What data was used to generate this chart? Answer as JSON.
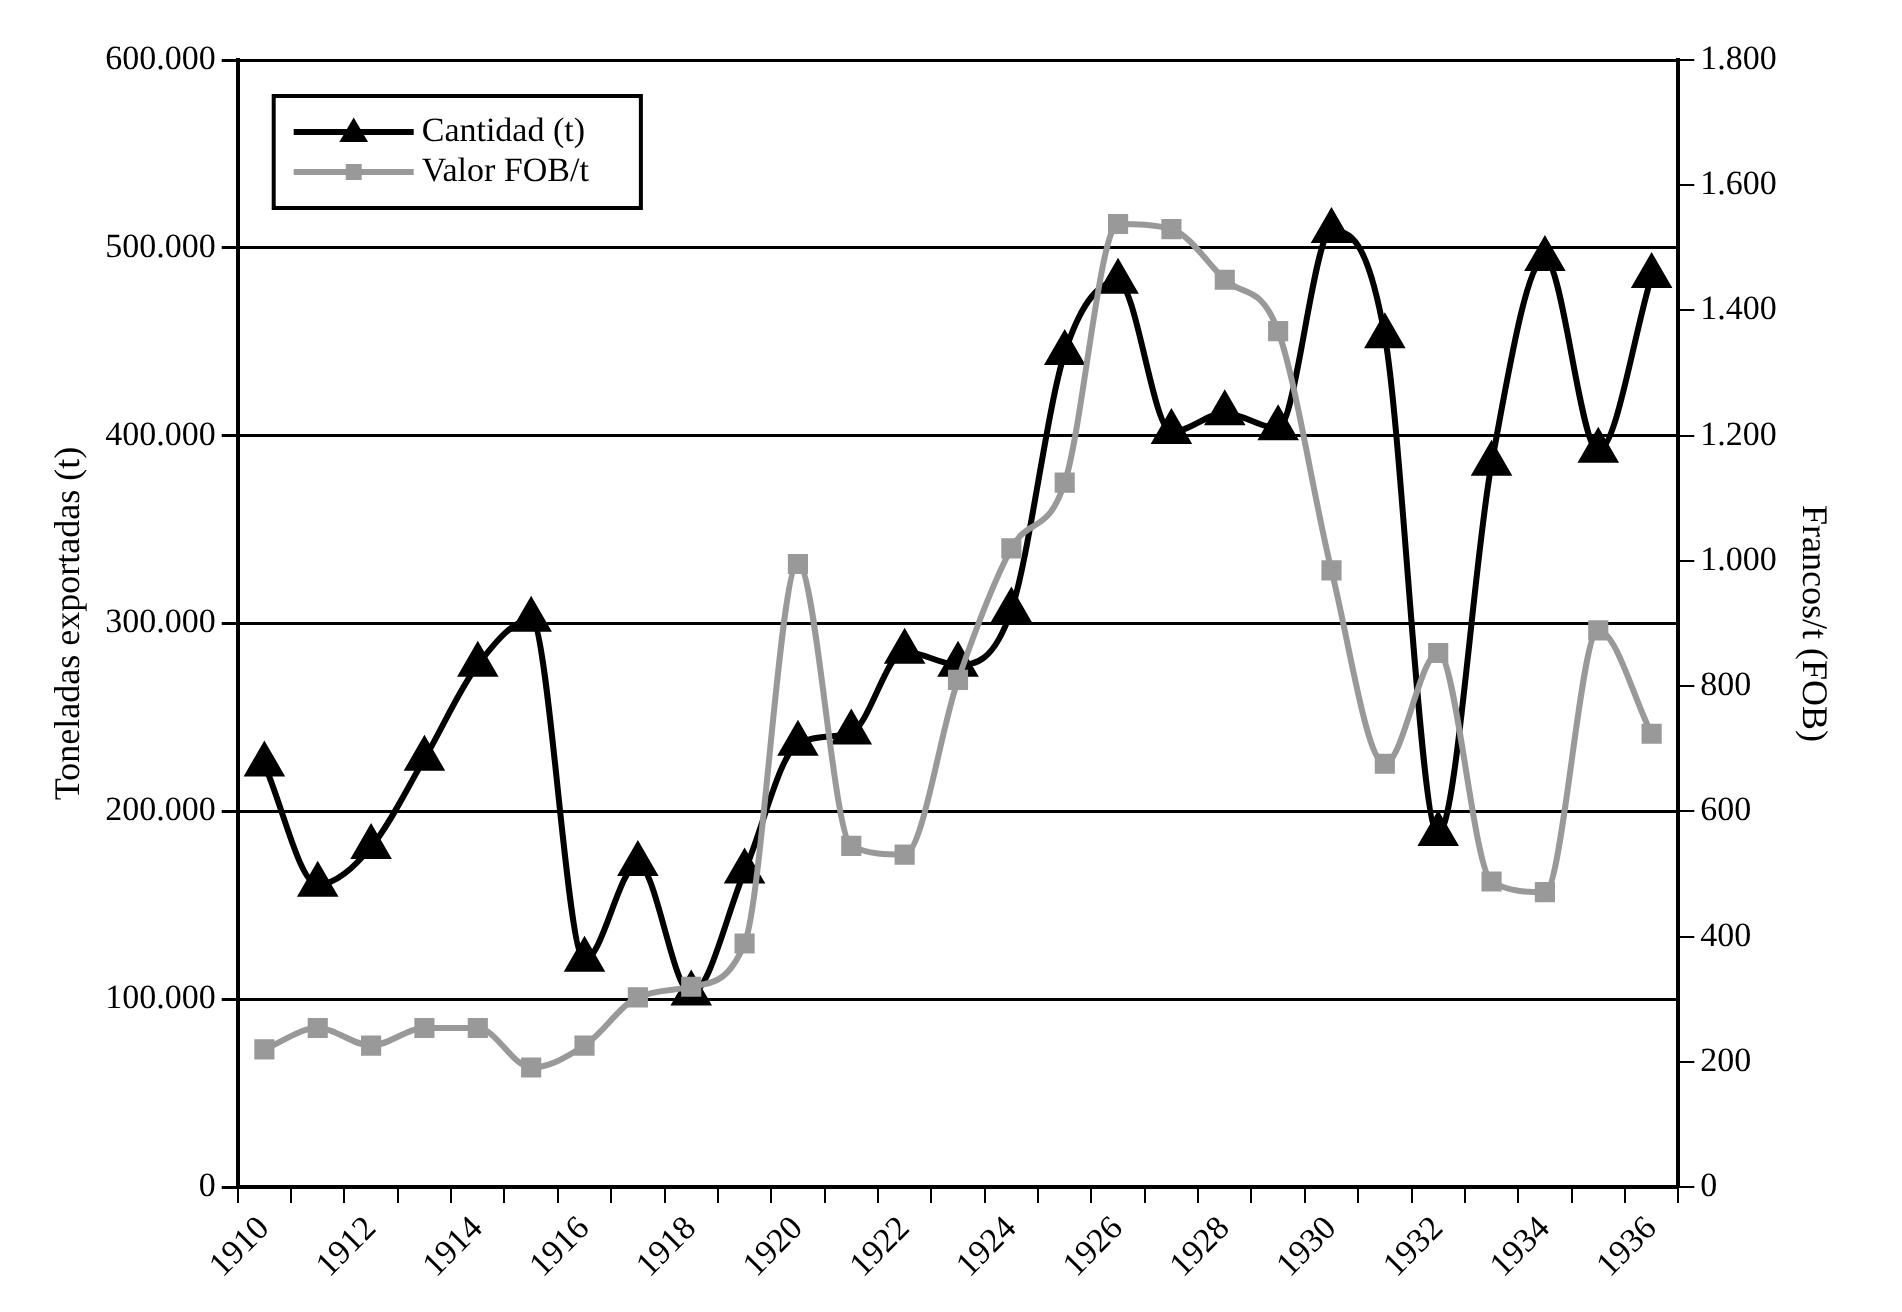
{
  "chart_data": {
    "type": "line",
    "ylabel": "Toneladas exportadas (t)",
    "y2label": "Francos/t (FOB)",
    "categories": [
      "1910",
      null,
      "1912",
      null,
      "1914",
      null,
      "1916",
      null,
      "1918",
      null,
      "1920",
      null,
      "1922",
      null,
      "1924",
      null,
      "1926",
      null,
      "1928",
      null,
      "1930",
      null,
      "1932",
      null,
      "1934",
      null,
      "1936"
    ],
    "series": [
      {
        "name": "Cantidad (t)",
        "color": "#000000",
        "marker": "triangle",
        "values": [
          225000,
          161000,
          181000,
          228000,
          278000,
          302000,
          121000,
          172000,
          103000,
          168000,
          236000,
          242000,
          285000,
          278000,
          307000,
          444000,
          482000,
          402000,
          412000,
          404000,
          509000,
          453000,
          188000,
          385000,
          494000,
          392000,
          485000
        ]
      },
      {
        "name": "Valor FOB/t",
        "color": "#999999",
        "marker": "square",
        "axis": "y2",
        "values": [
          220,
          254,
          226,
          254,
          254,
          191,
          226,
          303,
          320,
          389,
          995,
          545,
          531,
          810,
          1020,
          1125,
          1538,
          1530,
          1449,
          1367,
          985,
          676,
          853,
          488,
          471,
          889,
          724
        ]
      }
    ],
    "ylim": [
      0,
      600000
    ],
    "yticks": [
      0,
      {
        "value": 100000,
        "label": "100.000"
      },
      {
        "value": 200000,
        "label": "200.000"
      },
      {
        "value": 300000,
        "label": "300.000"
      },
      {
        "value": 400000,
        "label": "400.000"
      },
      {
        "value": 500000,
        "label": "500.000"
      },
      {
        "value": 600000,
        "label": "600.000"
      }
    ],
    "y2lim": [
      0,
      1800
    ],
    "y2ticks": [
      0,
      200,
      400,
      600,
      800,
      {
        "value": 1000,
        "label": "1.000"
      },
      {
        "value": 1200,
        "label": "1.200"
      },
      {
        "value": 1400,
        "label": "1.400"
      },
      {
        "value": 1600,
        "label": "1.600"
      },
      {
        "value": 1800,
        "label": "1.800"
      }
    ],
    "grid": "y",
    "legend": "top left"
  }
}
